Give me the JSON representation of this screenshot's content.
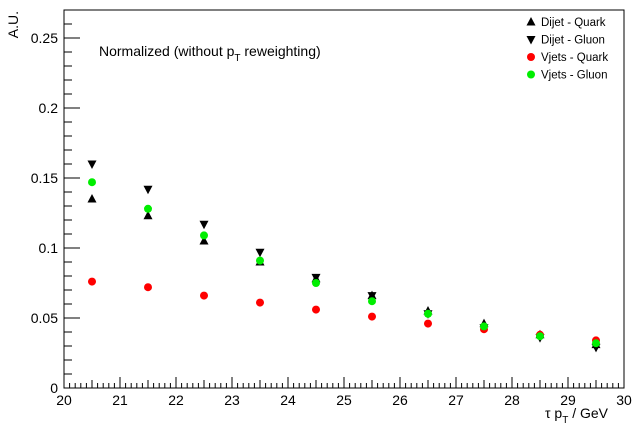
{
  "chart_data": {
    "type": "scatter",
    "annotation": {
      "prefix": "Normalized (without p",
      "sub": "T",
      "suffix": " reweighting)"
    },
    "xlabel": {
      "main": "τ p",
      "sub": "T",
      "suffix": " / GeV"
    },
    "ylabel": "A.U.",
    "xlim": [
      20,
      30
    ],
    "ylim": [
      0,
      0.27
    ],
    "x_ticks": [
      "20",
      "21",
      "22",
      "23",
      "24",
      "25",
      "26",
      "27",
      "28",
      "29",
      "30"
    ],
    "y_ticks": [
      "0",
      "0.05",
      "0.1",
      "0.15",
      "0.2",
      "0.25"
    ],
    "grid": false,
    "legend_position": "top-right",
    "x": [
      20.5,
      21.5,
      22.5,
      23.5,
      24.5,
      25.5,
      26.5,
      27.5,
      28.5,
      29.5
    ],
    "series": [
      {
        "name": "Dijet - Quark",
        "marker": "triangle-up",
        "color": "#000000",
        "values": [
          0.135,
          0.123,
          0.105,
          0.09,
          0.078,
          0.066,
          0.055,
          0.046,
          0.038,
          0.031
        ]
      },
      {
        "name": "Dijet - Gluon",
        "marker": "triangle-down",
        "color": "#000000",
        "values": [
          0.16,
          0.142,
          0.117,
          0.097,
          0.079,
          0.066,
          0.053,
          0.043,
          0.036,
          0.029
        ]
      },
      {
        "name": "Vjets - Quark",
        "marker": "circle",
        "color": "#ff0000",
        "values": [
          0.076,
          0.072,
          0.066,
          0.061,
          0.056,
          0.051,
          0.046,
          0.042,
          0.038,
          0.034
        ]
      },
      {
        "name": "Vjets - Gluon",
        "marker": "circle",
        "color": "#00ee00",
        "values": [
          0.147,
          0.128,
          0.109,
          0.091,
          0.075,
          0.062,
          0.053,
          0.044,
          0.037,
          0.032
        ]
      }
    ]
  }
}
